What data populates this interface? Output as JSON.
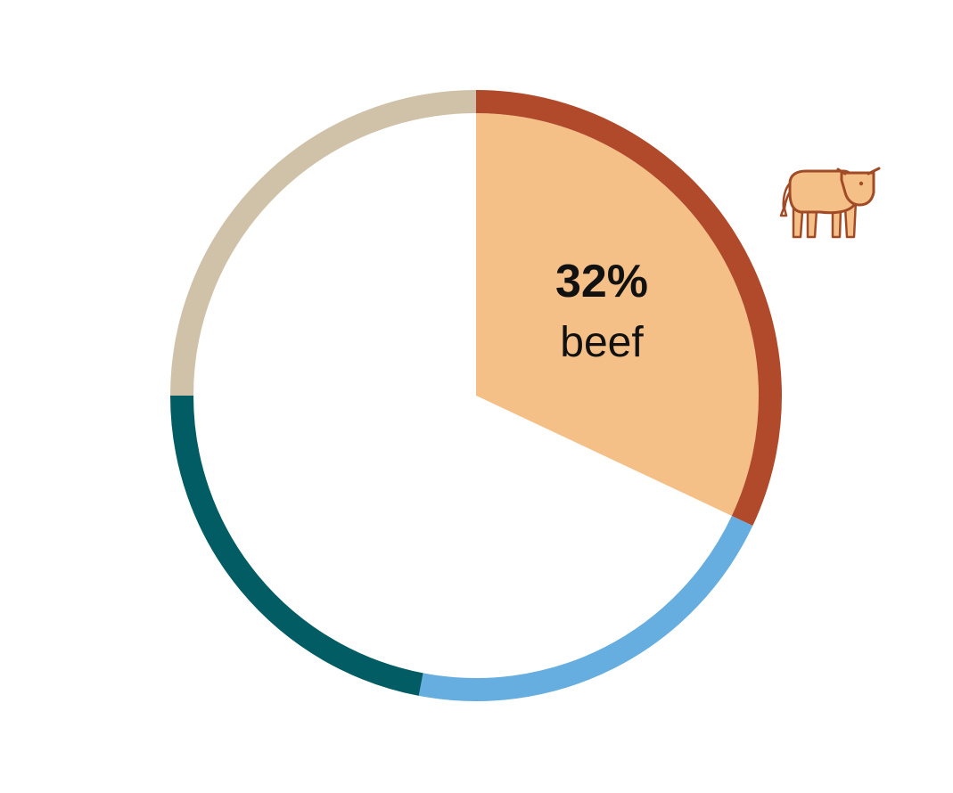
{
  "chart_data": {
    "type": "pie",
    "highlighted": "beef",
    "slices": [
      {
        "key": "beef",
        "label": "beef",
        "value": 32,
        "display": "32%",
        "ring_color": "#b04a2b",
        "fill_color": "#f4c088",
        "highlighted": true
      },
      {
        "key": "light-blue",
        "value": 21,
        "ring_color": "#66ade0",
        "fill_color": "#ffffff",
        "highlighted": false
      },
      {
        "key": "teal",
        "value": 22,
        "ring_color": "#025c63",
        "fill_color": "#ffffff",
        "highlighted": false
      },
      {
        "key": "tan",
        "value": 25,
        "ring_color": "#cfc2a8",
        "fill_color": "#ffffff",
        "highlighted": false
      }
    ],
    "icon": {
      "name": "cow-icon",
      "fill_color": "#f4c088",
      "stroke_color": "#a04a26"
    }
  }
}
